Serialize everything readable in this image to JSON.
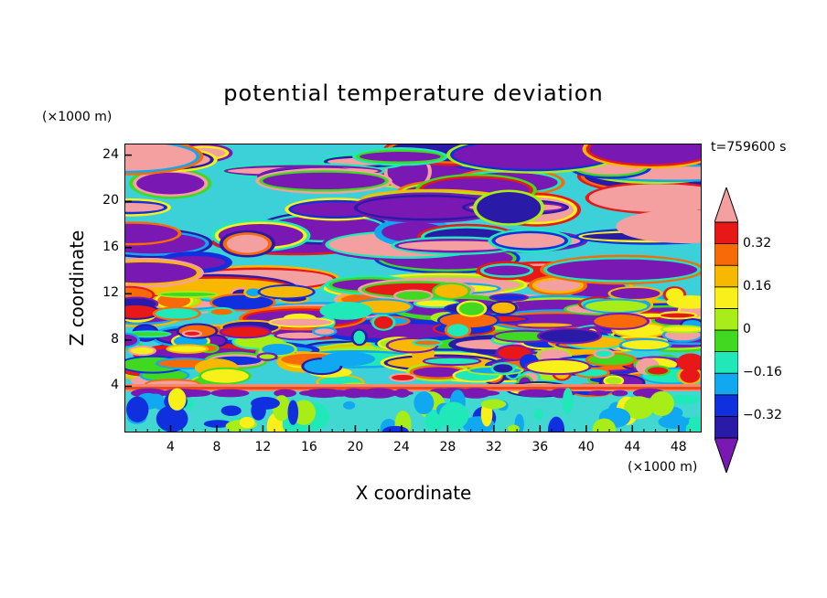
{
  "chart_data": {
    "type": "heatmap",
    "title": "potential temperature deviation",
    "xlabel": "X coordinate",
    "ylabel": "Z coordinate",
    "x_unit": "(×1000 m)",
    "y_unit": "(×1000 m)",
    "time_label": "t=759600 s",
    "xlim": [
      0,
      50
    ],
    "ylim": [
      0,
      25
    ],
    "x_ticks": [
      4,
      8,
      12,
      16,
      20,
      24,
      28,
      32,
      36,
      40,
      44,
      48
    ],
    "y_ticks": [
      4,
      8,
      12,
      16,
      20,
      24
    ],
    "colorbar": {
      "levels": [
        -0.4,
        -0.32,
        -0.24,
        -0.16,
        -0.08,
        0,
        0.08,
        0.16,
        0.24,
        0.32,
        0.4
      ],
      "labels": [
        "0.32",
        "0.16",
        "0",
        "−0.16",
        "−0.32"
      ],
      "label_values": [
        0.32,
        0.16,
        0,
        -0.16,
        -0.32
      ],
      "colors": [
        "#7a18b4",
        "#2a1aa8",
        "#1030e0",
        "#10a8f0",
        "#20e8b8",
        "#40d820",
        "#a8ec18",
        "#f8f018",
        "#f8b800",
        "#f86a08",
        "#e81818",
        "#f4a0a0"
      ],
      "extend": "both"
    }
  }
}
